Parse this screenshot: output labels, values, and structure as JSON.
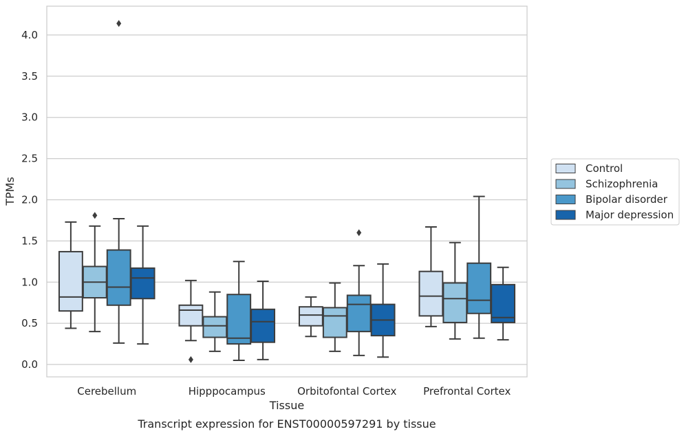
{
  "chart_data": {
    "type": "box",
    "title": "Transcript expression for ENST00000597291 by tissue",
    "xlabel": "Tissue",
    "ylabel": "TPMs",
    "categories": [
      "Cerebellum",
      "Hipppocampus",
      "Orbitofontal Cortex",
      "Prefrontal Cortex"
    ],
    "ylim": [
      -0.15,
      4.35
    ],
    "yticks": [
      "0.0",
      "0.5",
      "1.0",
      "1.5",
      "2.0",
      "2.5",
      "3.0",
      "3.5",
      "4.0"
    ],
    "grid": true,
    "legend_position": "right",
    "series": [
      {
        "name": "Control",
        "color": "#d0e1f2",
        "boxes": [
          {
            "whisker_low": 0.44,
            "q1": 0.65,
            "median": 0.82,
            "q3": 1.37,
            "whisker_high": 1.73,
            "outliers": []
          },
          {
            "whisker_low": 0.29,
            "q1": 0.47,
            "median": 0.66,
            "q3": 0.72,
            "whisker_high": 1.02,
            "outliers": [
              0.06
            ]
          },
          {
            "whisker_low": 0.34,
            "q1": 0.47,
            "median": 0.6,
            "q3": 0.7,
            "whisker_high": 0.82,
            "outliers": []
          },
          {
            "whisker_low": 0.46,
            "q1": 0.59,
            "median": 0.83,
            "q3": 1.13,
            "whisker_high": 1.67,
            "outliers": []
          }
        ]
      },
      {
        "name": "Schizophrenia",
        "color": "#94c4df",
        "boxes": [
          {
            "whisker_low": 0.4,
            "q1": 0.81,
            "median": 1.0,
            "q3": 1.19,
            "whisker_high": 1.68,
            "outliers": [
              1.81
            ]
          },
          {
            "whisker_low": 0.16,
            "q1": 0.33,
            "median": 0.47,
            "q3": 0.58,
            "whisker_high": 0.88,
            "outliers": []
          },
          {
            "whisker_low": 0.16,
            "q1": 0.33,
            "median": 0.59,
            "q3": 0.69,
            "whisker_high": 0.99,
            "outliers": []
          },
          {
            "whisker_low": 0.31,
            "q1": 0.51,
            "median": 0.8,
            "q3": 0.99,
            "whisker_high": 1.48,
            "outliers": []
          }
        ]
      },
      {
        "name": "Bipolar disorder",
        "color": "#4a98c9",
        "boxes": [
          {
            "whisker_low": 0.26,
            "q1": 0.72,
            "median": 0.94,
            "q3": 1.39,
            "whisker_high": 1.77,
            "outliers": [
              4.14
            ]
          },
          {
            "whisker_low": 0.05,
            "q1": 0.25,
            "median": 0.32,
            "q3": 0.85,
            "whisker_high": 1.25,
            "outliers": []
          },
          {
            "whisker_low": 0.11,
            "q1": 0.4,
            "median": 0.73,
            "q3": 0.84,
            "whisker_high": 1.2,
            "outliers": [
              1.6
            ]
          },
          {
            "whisker_low": 0.32,
            "q1": 0.62,
            "median": 0.78,
            "q3": 1.23,
            "whisker_high": 2.04,
            "outliers": []
          }
        ]
      },
      {
        "name": "Major depression",
        "color": "#1764ab",
        "boxes": [
          {
            "whisker_low": 0.25,
            "q1": 0.8,
            "median": 1.05,
            "q3": 1.17,
            "whisker_high": 1.68,
            "outliers": []
          },
          {
            "whisker_low": 0.06,
            "q1": 0.27,
            "median": 0.52,
            "q3": 0.67,
            "whisker_high": 1.01,
            "outliers": []
          },
          {
            "whisker_low": 0.09,
            "q1": 0.35,
            "median": 0.54,
            "q3": 0.73,
            "whisker_high": 1.22,
            "outliers": []
          },
          {
            "whisker_low": 0.3,
            "q1": 0.51,
            "median": 0.57,
            "q3": 0.97,
            "whisker_high": 1.18,
            "outliers": []
          }
        ]
      }
    ]
  }
}
